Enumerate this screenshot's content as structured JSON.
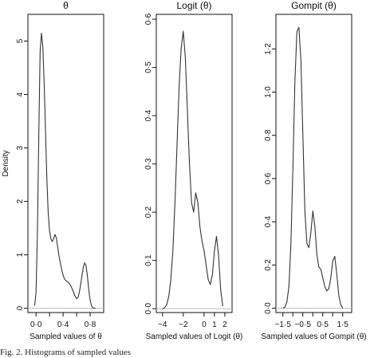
{
  "caption": "Fig. 2. Histograms of sampled values",
  "chart_data": [
    {
      "type": "line",
      "title": "θ",
      "xlabel": "Sampled values of θ",
      "ylabel": "Density",
      "xlim": [
        -0.12,
        1.0
      ],
      "ylim": [
        -0.08,
        5.5
      ],
      "xticks": [
        0.0,
        0.4,
        0.8
      ],
      "xtick_labels": [
        "0·0",
        "0·4",
        "0·8"
      ],
      "xminor": [
        0.2,
        0.6
      ],
      "yticks": [
        0,
        1,
        2,
        3,
        4,
        5
      ],
      "ytick_labels": [
        "0",
        "1",
        "2",
        "3",
        "4",
        "5"
      ],
      "grid": false,
      "series": [
        {
          "x": [
            -0.02,
            0.0,
            0.02,
            0.04,
            0.06,
            0.08,
            0.1,
            0.12,
            0.14,
            0.16,
            0.18,
            0.2,
            0.22,
            0.24,
            0.26,
            0.28,
            0.3,
            0.32,
            0.34,
            0.36,
            0.38,
            0.4,
            0.42,
            0.44,
            0.46,
            0.48,
            0.5,
            0.52,
            0.54,
            0.56,
            0.58,
            0.6,
            0.62,
            0.64,
            0.66,
            0.68,
            0.7,
            0.72,
            0.74,
            0.76,
            0.78,
            0.8,
            0.82,
            0.84,
            0.86,
            0.88
          ],
          "y": [
            0.05,
            0.3,
            1.4,
            3.2,
            4.8,
            5.15,
            4.9,
            4.2,
            3.3,
            2.4,
            1.8,
            1.45,
            1.3,
            1.25,
            1.3,
            1.38,
            1.32,
            1.15,
            0.98,
            0.85,
            0.72,
            0.62,
            0.55,
            0.52,
            0.5,
            0.48,
            0.45,
            0.4,
            0.35,
            0.28,
            0.22,
            0.18,
            0.2,
            0.3,
            0.45,
            0.62,
            0.78,
            0.85,
            0.8,
            0.6,
            0.35,
            0.15,
            0.05,
            0.01,
            0.0,
            0.0
          ]
        }
      ]
    },
    {
      "type": "line",
      "title": "Logit (θ)",
      "xlabel": "Sampled values of Logit (θ)",
      "ylabel": "",
      "xlim": [
        -4.6,
        2.7
      ],
      "ylim": [
        -0.008,
        0.61
      ],
      "xticks": [
        -4,
        -2,
        0,
        1,
        2
      ],
      "xtick_labels": [
        "−4",
        "−2",
        "0",
        "1",
        "2"
      ],
      "xminor": [],
      "yticks": [
        0.0,
        0.1,
        0.2,
        0.3,
        0.4,
        0.5,
        0.6
      ],
      "ytick_labels": [
        "0·0",
        "0·1",
        "0·2",
        "0·3",
        "0·4",
        "0·5",
        "0·6"
      ],
      "grid": false,
      "series": [
        {
          "x": [
            -4.0,
            -3.8,
            -3.6,
            -3.4,
            -3.2,
            -3.0,
            -2.8,
            -2.6,
            -2.4,
            -2.2,
            -2.0,
            -1.8,
            -1.6,
            -1.4,
            -1.2,
            -1.0,
            -0.8,
            -0.6,
            -0.4,
            -0.2,
            0.0,
            0.2,
            0.4,
            0.6,
            0.8,
            1.0,
            1.2,
            1.4,
            1.6,
            1.8
          ],
          "y": [
            0.0,
            0.002,
            0.008,
            0.025,
            0.06,
            0.12,
            0.22,
            0.34,
            0.46,
            0.54,
            0.575,
            0.52,
            0.41,
            0.3,
            0.22,
            0.2,
            0.24,
            0.22,
            0.17,
            0.14,
            0.12,
            0.09,
            0.06,
            0.05,
            0.07,
            0.12,
            0.15,
            0.11,
            0.04,
            0.005
          ]
        }
      ]
    },
    {
      "type": "line",
      "title": "Gompit (θ)",
      "xlabel": "Sampled values of Gompit (θ)",
      "ylabel": "",
      "xlim": [
        -1.85,
        1.95
      ],
      "ylim": [
        -0.02,
        1.36
      ],
      "xticks": [
        -1.5,
        -0.5,
        0.5,
        1.5
      ],
      "xtick_labels": [
        "−1·5",
        "−0·5",
        "0·5",
        "1·5"
      ],
      "xminor": [
        -1.0,
        0.0,
        1.0
      ],
      "yticks": [
        0.0,
        0.2,
        0.4,
        0.6,
        0.8,
        1.0,
        1.2
      ],
      "ytick_labels": [
        "0·0",
        "0·2",
        "0·4",
        "0·6",
        "0·8",
        "1·0",
        "1·2"
      ],
      "grid": false,
      "series": [
        {
          "x": [
            -1.5,
            -1.4,
            -1.3,
            -1.2,
            -1.1,
            -1.0,
            -0.9,
            -0.8,
            -0.7,
            -0.6,
            -0.5,
            -0.4,
            -0.3,
            -0.2,
            -0.1,
            0.0,
            0.1,
            0.2,
            0.3,
            0.4,
            0.5,
            0.6,
            0.7,
            0.8,
            0.9,
            1.0,
            1.1,
            1.2,
            1.3,
            1.4,
            1.5
          ],
          "y": [
            0.0,
            0.005,
            0.03,
            0.1,
            0.3,
            0.65,
            1.05,
            1.28,
            1.3,
            1.15,
            0.8,
            0.45,
            0.3,
            0.28,
            0.35,
            0.45,
            0.38,
            0.25,
            0.19,
            0.18,
            0.14,
            0.1,
            0.08,
            0.09,
            0.14,
            0.22,
            0.24,
            0.16,
            0.06,
            0.015,
            0.0
          ]
        }
      ]
    }
  ]
}
